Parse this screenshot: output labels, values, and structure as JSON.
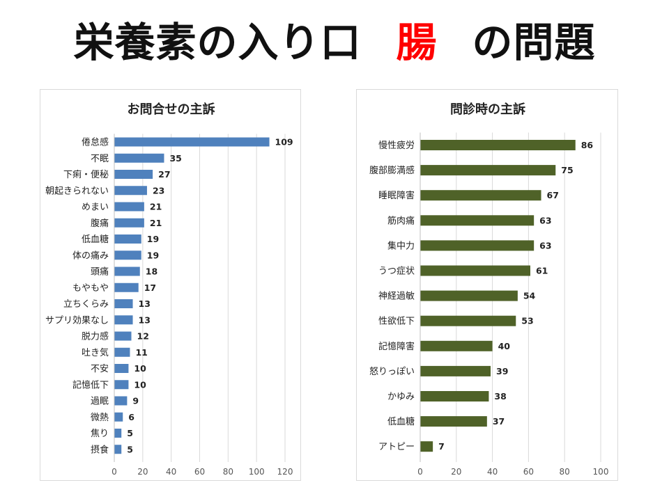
{
  "slide": {
    "title_before": "栄養素の入り口",
    "title_highlight": "腸",
    "title_after": "の問題",
    "highlight_color": "#ff0000"
  },
  "chart_data": [
    {
      "type": "bar",
      "orientation": "horizontal",
      "title": "お問合せの主訴",
      "color": "#4f81bd",
      "categories": [
        "倦怠感",
        "不眠",
        "下痢・便秘",
        "朝起きられない",
        "めまい",
        "腹痛",
        "低血糖",
        "体の痛み",
        "頭痛",
        "もやもや",
        "立ちくらみ",
        "サプリ効果なし",
        "脱力感",
        "吐き気",
        "不安",
        "記憶低下",
        "過眠",
        "微熱",
        "焦り",
        "摂食"
      ],
      "values": [
        109,
        35,
        27,
        23,
        21,
        21,
        19,
        19,
        18,
        17,
        13,
        13,
        12,
        11,
        10,
        10,
        9,
        6,
        5,
        5
      ],
      "xlim": [
        0,
        120
      ],
      "ticks": [
        0,
        20,
        40,
        60,
        80,
        100,
        120
      ],
      "grid": true,
      "legend": "none"
    },
    {
      "type": "bar",
      "orientation": "horizontal",
      "title": "問診時の主訴",
      "color": "#4f6228",
      "categories": [
        "慢性疲労",
        "腹部膨満感",
        "睡眠障害",
        "筋肉痛",
        "集中力",
        "うつ症状",
        "神経過敏",
        "性欲低下",
        "記憶障害",
        "怒りっぽい",
        "かゆみ",
        "低血糖",
        "アトピー"
      ],
      "values": [
        86,
        75,
        67,
        63,
        63,
        61,
        54,
        53,
        40,
        39,
        38,
        37,
        7
      ],
      "xlim": [
        0,
        100
      ],
      "ticks": [
        0,
        20,
        40,
        60,
        80,
        100
      ],
      "grid": true,
      "legend": "none"
    }
  ]
}
